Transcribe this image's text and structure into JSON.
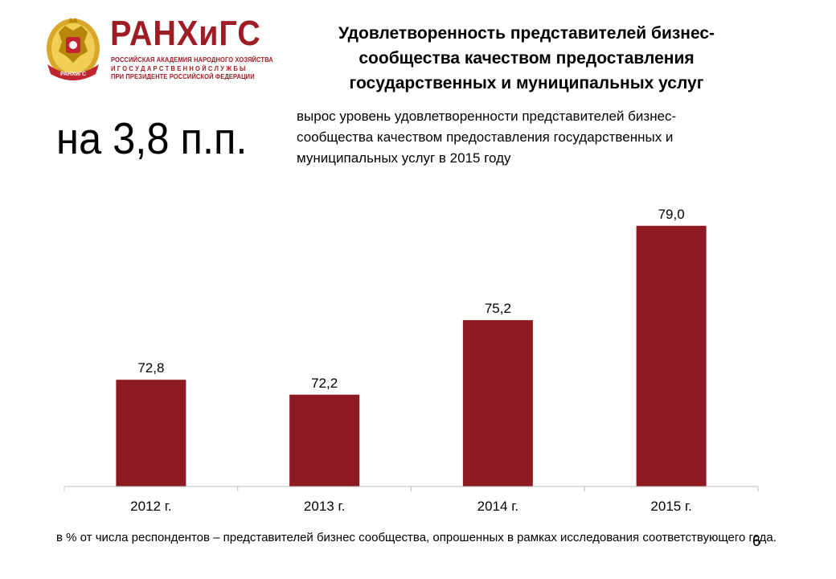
{
  "logo": {
    "word": "РАНХиГС",
    "sub_lines": [
      "РОССИЙСКАЯ АКАДЕМИЯ НАРОДНОГО ХОЗЯЙСТВА",
      "И  Г О С У Д А Р С Т В Е Н Н О Й  С Л У Ж Б Ы",
      "ПРИ ПРЕЗИДЕНТЕ РОССИЙСКОЙ ФЕДЕРАЦИИ"
    ],
    "ribbon_text": "РАНХиГС",
    "brand_color": "#9e1c24",
    "gold_color": "#d9a72a"
  },
  "slide": {
    "title": "Удовлетворенность представителей бизнес-сообщества качеством предоставления государственных и муниципальных услуг",
    "big_figure": "на 3,8 п.п.",
    "big_description": "вырос уровень  удовлетворенности представителей бизнес-сообщества качеством предоставления государственных и муниципальных услуг в 2015 году",
    "footnote": " в % от числа респондентов – представителей бизнес сообщества, опрошенных в рамках исследования соответствующего года.",
    "page_number": "6"
  },
  "chart_data": {
    "type": "bar",
    "categories": [
      "2012 г.",
      "2013 г.",
      "2014 г.",
      "2015 г."
    ],
    "values": [
      72.8,
      72.2,
      75.2,
      79.0
    ],
    "value_labels": [
      "72,8",
      "72,2",
      "75,2",
      "79,0"
    ],
    "title": "",
    "xlabel": "",
    "ylabel": "",
    "ylim": [
      68.5,
      79.9
    ],
    "grid": false,
    "legend": "none",
    "bar_color": "#8c1a20",
    "axis_color": "#bfbfbf"
  }
}
